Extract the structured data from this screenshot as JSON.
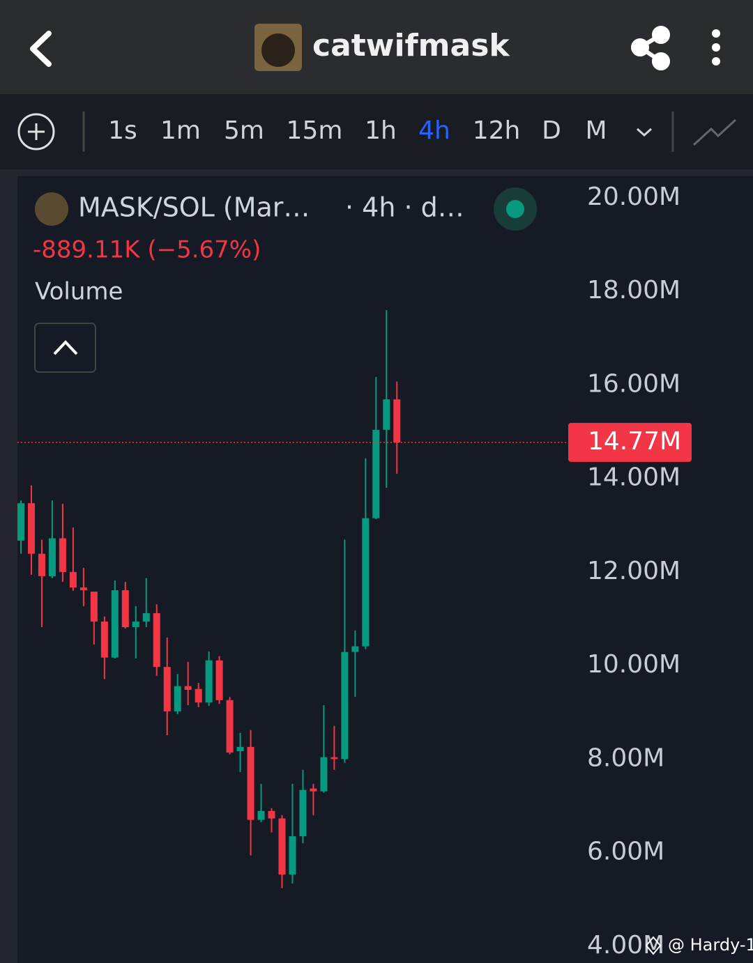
{
  "header": {
    "title": "catwifmask"
  },
  "toolbar": {
    "intervals": [
      {
        "label": "1s"
      },
      {
        "label": "1m"
      },
      {
        "label": "5m"
      },
      {
        "label": "15m"
      },
      {
        "label": "1h"
      },
      {
        "label": "4h",
        "active": true
      },
      {
        "label": "12h"
      },
      {
        "label": "D"
      },
      {
        "label": "M"
      }
    ]
  },
  "chart_data": {
    "type": "candlestick",
    "symbol": "MASK/SOL (Mar…",
    "interval": "· 4h · d…",
    "change": "-889.11K (−5.67%)",
    "indicator": "Volume",
    "up_color": "#089981",
    "down_color": "#f23645",
    "open": [
      12.67,
      13.47,
      12.39,
      11.91,
      12.72,
      12.0,
      11.67,
      11.58,
      10.94,
      10.17,
      11.61,
      10.82,
      10.94,
      11.12,
      9.97,
      9.02,
      9.56,
      9.5,
      9.21,
      10.11,
      9.26,
      8.17,
      8.26,
      6.7,
      6.89,
      6.73,
      5.53,
      6.35,
      7.37,
      7.31,
      8.04,
      8.0,
      10.29,
      10.41,
      13.15,
      15.04,
      15.69
    ],
    "high": [
      13.53,
      13.85,
      12.69,
      13.53,
      13.46,
      12.95,
      12.09,
      11.58,
      11.05,
      11.82,
      11.79,
      11.27,
      11.87,
      11.31,
      10.6,
      9.82,
      10.08,
      9.63,
      10.3,
      10.2,
      9.33,
      8.56,
      8.62,
      7.47,
      6.95,
      6.8,
      7.47,
      7.77,
      7.47,
      9.15,
      8.71,
      12.69,
      10.75,
      14.43,
      16.17,
      17.6,
      16.07
    ],
    "low": [
      12.39,
      11.94,
      10.82,
      11.87,
      11.79,
      11.6,
      11.27,
      10.45,
      9.71,
      10.15,
      10.79,
      10.15,
      10.82,
      9.78,
      8.51,
      8.96,
      9.15,
      9.11,
      9.14,
      9.18,
      8.1,
      7.72,
      5.94,
      6.65,
      6.43,
      5.24,
      5.34,
      6.2,
      6.8,
      7.28,
      7.77,
      7.92,
      9.33,
      10.35,
      13.13,
      13.8,
      14.1
    ],
    "close": [
      13.47,
      12.39,
      11.91,
      12.72,
      12.0,
      11.67,
      11.61,
      10.94,
      10.17,
      11.61,
      10.82,
      10.94,
      11.12,
      9.97,
      9.02,
      9.56,
      9.48,
      9.21,
      10.11,
      9.26,
      8.14,
      8.26,
      6.7,
      6.89,
      6.73,
      5.53,
      6.35,
      7.34,
      7.31,
      8.04,
      8.0,
      10.29,
      10.41,
      13.15,
      15.04,
      15.69,
      14.77
    ],
    "ylim": [
      3.64,
      20.46
    ],
    "yticks": [
      {
        "value": 20,
        "label": "20.00M"
      },
      {
        "value": 18,
        "label": "18.00M"
      },
      {
        "value": 16,
        "label": "16.00M"
      },
      {
        "value": 14,
        "label": "14.00M"
      },
      {
        "value": 12,
        "label": "12.00M"
      },
      {
        "value": 10,
        "label": "10.00M"
      },
      {
        "value": 8,
        "label": "8.00M"
      },
      {
        "value": 6,
        "label": "6.00M"
      },
      {
        "value": 4,
        "label": "4.00M"
      }
    ],
    "current_price": {
      "value": 14.77,
      "label": "14.77M"
    },
    "watermark": "@ Hardy-1"
  }
}
